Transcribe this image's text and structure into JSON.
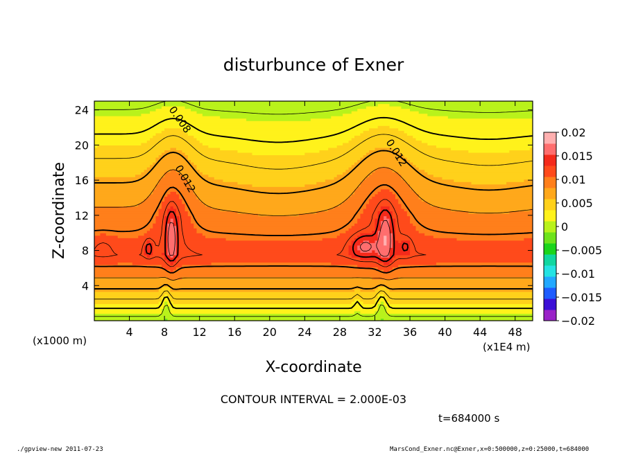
{
  "chart_data": {
    "type": "heatmap",
    "title": "disturbunce of Exner",
    "xlabel": "X-coordinate",
    "ylabel": "Z-coordinate",
    "x_unit_left": "(x1000 m)",
    "x_unit_right": "(x1E4 m)",
    "xlim": [
      0,
      50
    ],
    "ylim": [
      0,
      25
    ],
    "x_ticks": [
      4,
      8,
      12,
      16,
      20,
      24,
      28,
      32,
      36,
      40,
      44,
      48
    ],
    "y_ticks": [
      4,
      8,
      12,
      16,
      20,
      24
    ],
    "x_tick_labels": [
      "4",
      "8",
      "12",
      "16",
      "20",
      "24",
      "28",
      "32",
      "36",
      "40",
      "44",
      "48"
    ],
    "y_tick_labels": [
      "4",
      "8",
      "12",
      "16",
      "20",
      "24"
    ],
    "contour_labels": [
      "0.008",
      "0.012",
      "0.012"
    ],
    "colorbar": {
      "min": -0.02,
      "max": 0.02,
      "tick_values": [
        0.02,
        0.015,
        0.01,
        0.005,
        0,
        -0.005,
        -0.01,
        -0.015,
        -0.02
      ],
      "tick_labels": [
        "0.02",
        "0.015",
        "0.01",
        "0.005",
        "0",
        "−0.005",
        "−0.01",
        "−0.015",
        "−0.02"
      ],
      "colors": [
        "#9a23c8",
        "#3b0fd6",
        "#1e5cff",
        "#22a8ff",
        "#24e3e3",
        "#10d7a0",
        "#1bd51b",
        "#6ee31b",
        "#b9f21b",
        "#fff21b",
        "#ffd11b",
        "#ffa81b",
        "#ff7f1b",
        "#ff4a1b",
        "#f42a1b",
        "#ff6e6e",
        "#ffb0b0"
      ]
    },
    "contour_interval_text": "CONTOUR INTERVAL = 2.000E-03",
    "time_text": "t=684000 s"
  },
  "footer": {
    "left": "./gpview-new   2011-07-23",
    "right": "MarsCond_Exner.nc@Exner,x=0:500000,z=0:25000,t=684000"
  }
}
